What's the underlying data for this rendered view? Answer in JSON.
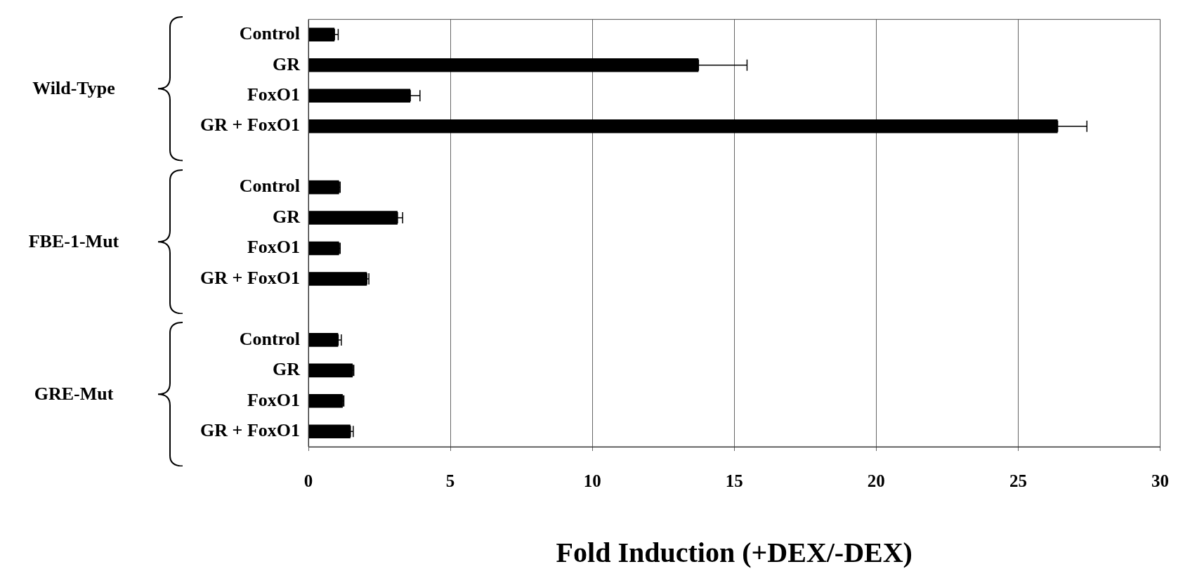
{
  "chart_data": {
    "type": "bar",
    "orientation": "horizontal",
    "xlabel": "Fold Induction (+DEX/-DEX)",
    "categories": [
      "Control",
      "GR",
      "FoxO1",
      "GR + FoxO1",
      null,
      "Control",
      "GR",
      "FoxO1",
      "GR + FoxO1",
      null,
      "Control",
      "GR",
      "FoxO1",
      "GR + FoxO1"
    ],
    "values": [
      0.92,
      13.74,
      3.59,
      26.39,
      null,
      1.08,
      3.14,
      1.08,
      2.06,
      null,
      1.05,
      1.56,
      1.21,
      1.48
    ],
    "errors": [
      [
        0.92,
        1.05
      ],
      [
        13.74,
        15.45
      ],
      [
        3.59,
        3.93
      ],
      [
        26.39,
        27.42
      ],
      null,
      [
        1.08,
        1.12
      ],
      [
        3.14,
        3.32
      ],
      [
        1.08,
        1.12
      ],
      [
        2.06,
        2.13
      ],
      null,
      [
        1.05,
        1.16
      ],
      [
        1.56,
        1.6
      ],
      [
        1.21,
        1.25
      ],
      [
        1.48,
        1.58
      ]
    ],
    "color": "#000000",
    "xlim": [
      0,
      30
    ],
    "xticks": [
      0,
      5,
      10,
      15,
      20,
      25,
      30
    ],
    "grid": "x",
    "legend": false,
    "annotations": [
      "Wild-Type",
      "FBE-1-Mut",
      "GRE-Mut"
    ]
  }
}
